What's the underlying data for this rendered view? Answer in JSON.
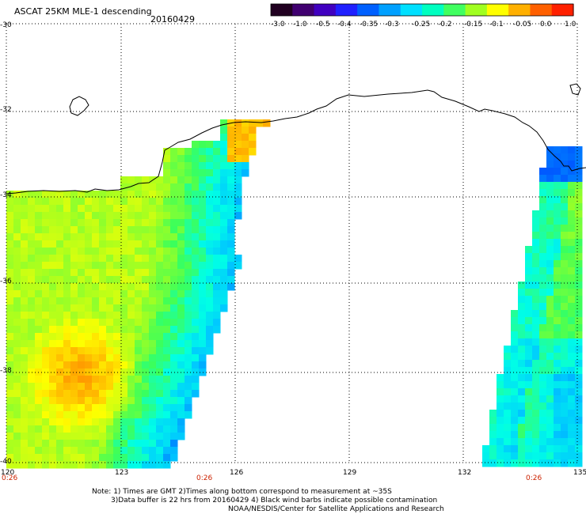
{
  "header": {
    "title": "ASCAT 25KM MLE-1 descending",
    "date": "20160429"
  },
  "colorbar": {
    "labels": [
      "-3.0",
      "-1.0",
      "-0.5",
      "-0.4",
      "-0.35",
      "-0.3",
      "-0.25",
      "-0.2",
      "-0.15",
      "-0.1",
      "-0.05",
      "0.0",
      "1.0"
    ],
    "colors": [
      "#200020",
      "#400070",
      "#4000c0",
      "#2020ff",
      "#0060ff",
      "#00a0ff",
      "#00e0ff",
      "#00ffc0",
      "#40ff60",
      "#a0ff20",
      "#ffff00",
      "#ffb000",
      "#ff6000",
      "#ff2000"
    ]
  },
  "axes": {
    "lat_labels": [
      "-30",
      "-32",
      "-34",
      "-36",
      "-38",
      "-40"
    ],
    "lon_labels": [
      "120",
      "123",
      "126",
      "129",
      "132",
      "135"
    ]
  },
  "times": [
    "0:26",
    "0:26",
    "0:26"
  ],
  "notes": {
    "line1": "Note: 1) Times are GMT 2)Times along bottom correspond to measurement at ~35S",
    "line2": "3)Data buffer is 22 hrs from 20160429 4) Black wind barbs indicate possible contamination",
    "line3": "NOAA/NESDIS/Center for Satellite Applications and Research"
  }
}
